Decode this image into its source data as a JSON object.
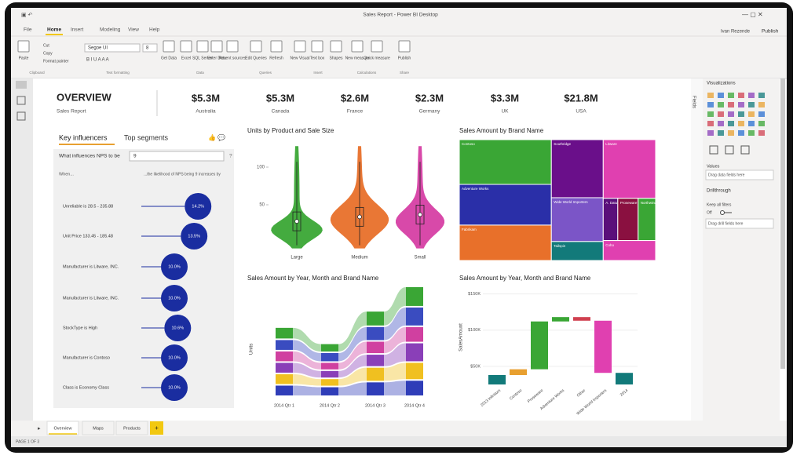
{
  "window": {
    "title": "Sales Report - Power BI Desktop",
    "user": "Ivan Rezende",
    "publish": "Publish"
  },
  "ribbon": {
    "tabs": [
      "File",
      "Home",
      "Insert",
      "Modeling",
      "View",
      "Help"
    ],
    "font": "Segoe UI",
    "font_size": "8",
    "buttons": [
      "Paste",
      "Cut",
      "Copy",
      "Format painter",
      "Get Data",
      "Excel",
      "SQL Server",
      "Enter Data",
      "Recent sources",
      "Edit Queries",
      "Refresh",
      "New Visual",
      "Text box",
      "Shapes",
      "New measure",
      "Quick measure",
      "Publish"
    ],
    "groups": [
      "Clipboard",
      "Text formatting",
      "Data",
      "Queries",
      "Insert",
      "Calculations",
      "Share"
    ]
  },
  "report": {
    "title": "OVERVIEW",
    "subtitle": "Sales Report",
    "kpis": [
      {
        "value": "$5.3M",
        "label": "Australia"
      },
      {
        "value": "$5.3M",
        "label": "Canada"
      },
      {
        "value": "$2.6M",
        "label": "France"
      },
      {
        "value": "$2.3M",
        "label": "Germany"
      },
      {
        "value": "$3.3M",
        "label": "UK"
      },
      {
        "value": "$21.8M",
        "label": "USA"
      }
    ]
  },
  "influencers": {
    "tabs": [
      "Key influencers",
      "Top segments"
    ],
    "question": "What influences NPS to be",
    "answer": "9",
    "help": "?",
    "col_when": "When...",
    "col_likely": "...the likelihood of NPS being 9 increases by",
    "labels": [
      "Unreliable is 28.5 - 235.88",
      "Unit Price 133.45 - 185.48",
      "Manufacturer is Litware, INC.",
      "Manufacturer is Litware, INC.",
      "StockType is High",
      "Manufacturer is Contoso",
      "Class is Economy Class"
    ],
    "values": [
      14.2,
      13.5,
      10.0,
      10.0,
      10.6,
      10.0,
      10.0
    ],
    "value_labels": [
      "14.2%",
      "13.5%",
      "10.0%",
      "10.0%",
      "10.6%",
      "10.0%",
      "10.0%"
    ]
  },
  "chart_data": [
    {
      "type": "violin",
      "title": "Units by Product and Sale Size",
      "categories": [
        "Large",
        "Medium",
        "Small"
      ],
      "values": [
        28,
        34,
        37
      ],
      "colors": [
        "#3aa635",
        "#e8702a",
        "#d63fa4"
      ],
      "ylim": [
        -10,
        130
      ],
      "yticks": [
        50,
        100
      ]
    },
    {
      "type": "treemap",
      "title": "Sales Amount by Brand Name",
      "categories": [
        "Contoso",
        "Adventure Works",
        "Fabrikam",
        "Southridge",
        "Wide World Importers",
        "Tailspin",
        "Litware",
        "A. Datum",
        "Proseware",
        "Northwind",
        "Coho"
      ],
      "values": [
        67,
        61,
        53,
        49,
        37,
        16,
        50,
        10,
        14,
        12,
        17
      ],
      "colors": [
        "#3aa635",
        "#2a2fa8",
        "#e8702a",
        "#6a0f8a",
        "#7b55c7",
        "#127a7a",
        "#e040b0",
        "#5a0f7a",
        "#8a1040",
        "#3aa635",
        "#e040b0"
      ]
    },
    {
      "type": "ribbon",
      "title": "Sales Amount by Year, Month and Brand Name",
      "y_label": "Units",
      "categories": [
        "2014 Qtr 1",
        "2014 Qtr 2",
        "2014 Qtr 3",
        "2014 Qtr 4"
      ],
      "series": [
        {
          "color": "#2f3db8",
          "values": [
            14,
            12,
            18,
            20
          ]
        },
        {
          "color": "#f0c020",
          "values": [
            14,
            10,
            18,
            22
          ]
        },
        {
          "color": "#8a3fb8",
          "values": [
            14,
            10,
            16,
            24
          ]
        },
        {
          "color": "#d040a0",
          "values": [
            14,
            10,
            16,
            20
          ]
        },
        {
          "color": "#3a4cc0",
          "values": [
            14,
            12,
            18,
            24
          ]
        },
        {
          "color": "#3aa635",
          "values": [
            15,
            11,
            19,
            25
          ]
        }
      ]
    },
    {
      "type": "waterfall",
      "title": "Sales Amount by Year, Month and Brand Name",
      "y_label": "SalesAmount",
      "categories": [
        "2013 Infinitum",
        "Contoso",
        "Proseware",
        "Adventure Works",
        "Other",
        "Wide World Importers",
        "2014"
      ],
      "values": [
        38000,
        8000,
        66000,
        6000,
        -5000,
        -72000,
        41000
      ],
      "colors": [
        "#127a7a",
        "#e8a030",
        "#3aa635",
        "#3aa635",
        "#d04050",
        "#e040b0",
        "#127a7a"
      ],
      "ylim": [
        25000,
        155000
      ],
      "yticks": [
        {
          "value": 50000,
          "label": "$50K"
        },
        {
          "value": 100000,
          "label": "$100K"
        },
        {
          "value": 150000,
          "label": "$150K"
        }
      ]
    }
  ],
  "panes": {
    "fields": "Fields",
    "visualizations": "Visualizations",
    "values": "Values",
    "drop": "Drag data fields here",
    "drillthrough": "Drillthrough",
    "keep": "Keep all filters",
    "off": "Off",
    "drop2": "Drag drill fields here"
  },
  "pages": [
    "Overview",
    "Maps",
    "Products"
  ],
  "add_page": "+",
  "status": "PAGE 1 OF 3"
}
